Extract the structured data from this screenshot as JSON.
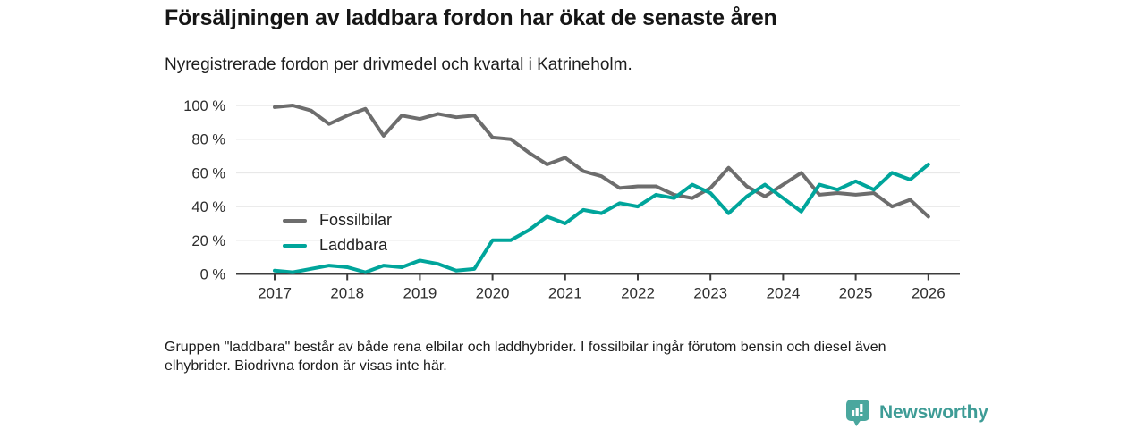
{
  "header": {
    "title": "Försäljningen av laddbara fordon har ökat de senaste åren",
    "subtitle": "Nyregistrerade fordon per drivmedel och kvartal i Katrineholm."
  },
  "chart_data": {
    "type": "line",
    "x_unit": "quarter",
    "x_start": "2017 Q1",
    "x_end": "2026 Q1",
    "x_tick_labels": [
      "2017",
      "2018",
      "2019",
      "2020",
      "2021",
      "2022",
      "2023",
      "2024",
      "2025",
      "2026"
    ],
    "y_tick_labels": [
      "0 %",
      "20 %",
      "40 %",
      "60 %",
      "80 %",
      "100 %"
    ],
    "y_ticks": [
      0,
      20,
      40,
      60,
      80,
      100
    ],
    "ylim": [
      0,
      100
    ],
    "grid": "horizontal",
    "legend_position": "inside-left",
    "series": [
      {
        "name": "Fossilbilar",
        "color": "#6d6d6d",
        "values": [
          99,
          100,
          97,
          89,
          94,
          98,
          82,
          94,
          92,
          95,
          93,
          94,
          81,
          80,
          72,
          65,
          69,
          61,
          58,
          51,
          52,
          52,
          47,
          45,
          51,
          63,
          52,
          46,
          53,
          60,
          47,
          48,
          47,
          48,
          40,
          44,
          34
        ]
      },
      {
        "name": "Laddbara",
        "color": "#00a59b",
        "values": [
          2,
          1,
          3,
          5,
          4,
          1,
          5,
          4,
          8,
          6,
          2,
          3,
          20,
          20,
          26,
          34,
          30,
          38,
          36,
          42,
          40,
          47,
          45,
          53,
          48,
          36,
          46,
          53,
          45,
          37,
          53,
          50,
          55,
          50,
          60,
          56,
          65
        ]
      }
    ]
  },
  "footer": {
    "note": "Gruppen \"laddbara\" består av både rena elbilar och laddhybrider. I fossilbilar ingår förutom bensin och diesel även elhybrider. Biodrivna fordon är visas inte här.",
    "brand": "Newsworthy"
  },
  "colors": {
    "axis": "#3c3c3c",
    "gridline": "#e8e8e8",
    "brand_badge": "#4aa79e",
    "brand_text": "#3e9c96"
  }
}
